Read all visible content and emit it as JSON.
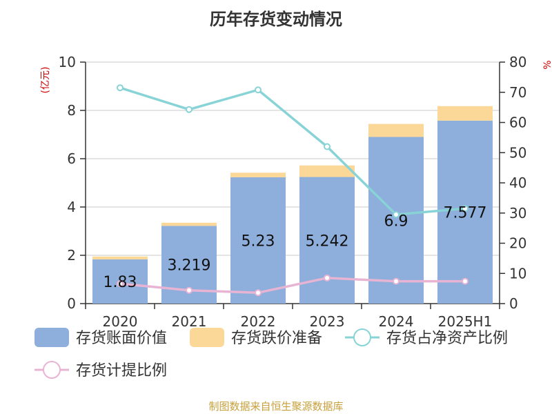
{
  "title": "历年存货变动情况",
  "source": "制图数据来自恒生聚源数据库",
  "chart_data": {
    "type": "bar",
    "categories": [
      "2020",
      "2021",
      "2022",
      "2023",
      "2024",
      "2025H1"
    ],
    "ylabel_left": "(亿元)",
    "ylabel_right": "%",
    "ylim_left": [
      0,
      10
    ],
    "ylim_right": [
      0,
      80
    ],
    "left_ticks": [
      "0",
      "2",
      "4",
      "6",
      "8",
      "10"
    ],
    "right_ticks": [
      "0",
      "10",
      "20",
      "30",
      "40",
      "50",
      "60",
      "70",
      "80"
    ],
    "grid": true,
    "legend_position": "bottom",
    "series": [
      {
        "name": "存货账面价值",
        "type": "bar",
        "stack": "inventory",
        "axis": "left",
        "color": "#8eaedb",
        "values": [
          1.83,
          3.219,
          5.23,
          5.242,
          6.9,
          7.577
        ],
        "labels": [
          "1.83",
          "3.219",
          "5.23",
          "5.242",
          "6.9",
          "7.577"
        ]
      },
      {
        "name": "存货跌价准备",
        "type": "bar",
        "stack": "inventory",
        "axis": "left",
        "color": "#fbd898",
        "values": [
          0.12,
          0.13,
          0.19,
          0.48,
          0.54,
          0.6
        ]
      },
      {
        "name": "存货占净资产比例",
        "type": "line",
        "axis": "right",
        "color": "#88d3d6",
        "values": [
          71.5,
          64.3,
          70.8,
          52.0,
          29.5,
          31.5
        ]
      },
      {
        "name": "存货计提比例",
        "type": "line",
        "axis": "right",
        "color": "#e8b4d4",
        "values": [
          6.6,
          4.4,
          3.6,
          8.5,
          7.4,
          7.4
        ]
      }
    ]
  }
}
